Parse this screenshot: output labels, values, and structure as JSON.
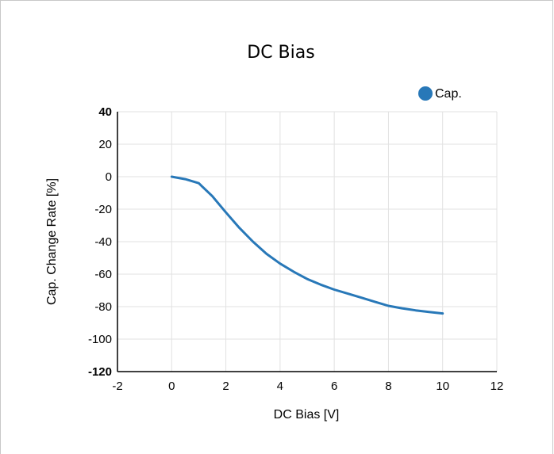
{
  "chart_data": {
    "type": "line",
    "title": "DC Bias",
    "xlabel": "DC Bias [V]",
    "ylabel": "Cap. Change Rate [%]",
    "xlim": [
      -2,
      12
    ],
    "ylim": [
      -120,
      40
    ],
    "x_ticks": [
      "-2",
      "0",
      "2",
      "4",
      "6",
      "8",
      "10",
      "12"
    ],
    "y_ticks": [
      "40",
      "20",
      "0",
      "-20",
      "-40",
      "-60",
      "-80",
      "-100",
      "-120"
    ],
    "y_ticks_bold": [
      "40",
      "-120"
    ],
    "grid": true,
    "legend_position": "top-right",
    "series": [
      {
        "name": "Cap.",
        "color": "#2878b8",
        "x": [
          0,
          0.5,
          1,
          1.5,
          2,
          2.5,
          3,
          3.5,
          4,
          4.5,
          5,
          5.5,
          6,
          6.5,
          7,
          7.5,
          8,
          8.5,
          9,
          9.5,
          10
        ],
        "y": [
          0,
          -1.5,
          -4,
          -12,
          -22,
          -31.5,
          -40,
          -47.5,
          -53.5,
          -58.5,
          -63,
          -66.5,
          -69.5,
          -72,
          -74.5,
          -77,
          -79.5,
          -81,
          -82.3,
          -83.3,
          -84.2
        ]
      }
    ]
  }
}
